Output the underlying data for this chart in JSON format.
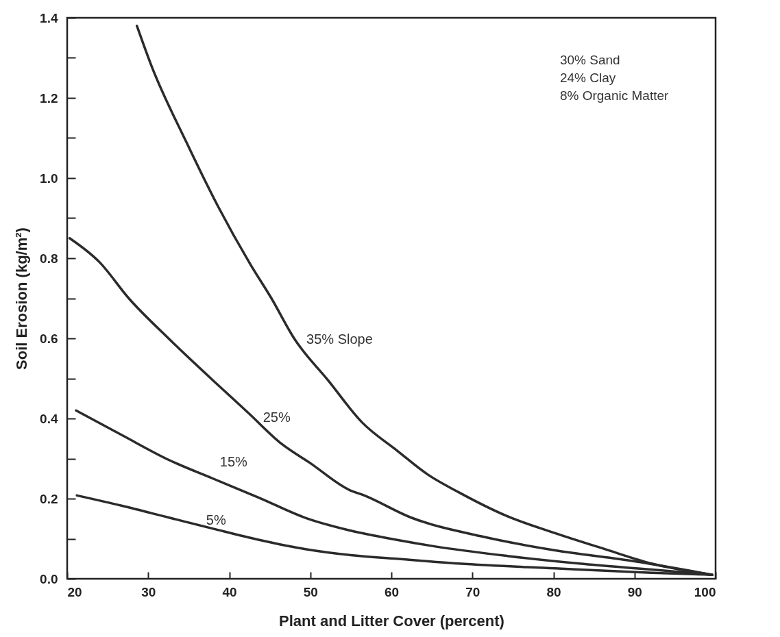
{
  "chart_data": {
    "type": "line",
    "xlabel": "Plant and Litter Cover (percent)",
    "ylabel": "Soil Erosion (kg/m²)",
    "xlim": [
      20,
      100
    ],
    "ylim": [
      0,
      1.4
    ],
    "xticks": [
      20,
      30,
      40,
      50,
      60,
      70,
      80,
      90,
      100
    ],
    "yticks": [
      {
        "value": 0,
        "label": "0.0"
      },
      {
        "value": 0.1,
        "label": null
      },
      {
        "value": 0.2,
        "label": "0.2"
      },
      {
        "value": 0.3,
        "label": null
      },
      {
        "value": 0.4,
        "label": "0.4"
      },
      {
        "value": 0.5,
        "label": null
      },
      {
        "value": 0.6,
        "label": "0.6"
      },
      {
        "value": 0.7,
        "label": null
      },
      {
        "value": 0.8,
        "label": "0.8"
      },
      {
        "value": 0.9,
        "label": null
      },
      {
        "value": 1.0,
        "label": "1.0"
      },
      {
        "value": 1.1,
        "label": null
      },
      {
        "value": 1.2,
        "label": "1.2"
      },
      {
        "value": 1.3,
        "label": null
      },
      {
        "value": 1.4,
        "label": "1.4"
      }
    ],
    "grid": false,
    "legend": false,
    "marker": "none",
    "line_style": "solid",
    "annotations": [
      "30% Sand",
      "24% Clay",
      "8% Organic Matter"
    ],
    "series": [
      {
        "name": "35% Slope",
        "color": "#2b2b2b",
        "x": [
          28.6,
          30.4,
          34.7,
          38.6,
          42.6,
          45.2,
          48,
          52.2,
          56.4,
          60.7,
          64.5,
          68.3,
          74.2,
          80.2,
          86.2,
          92.1,
          99.6
        ],
        "values": [
          1.38,
          1.28,
          1.09,
          0.93,
          0.785,
          0.7,
          0.6,
          0.495,
          0.39,
          0.32,
          0.26,
          0.216,
          0.157,
          0.114,
          0.075,
          0.038,
          0.01
        ]
      },
      {
        "name": "25%",
        "color": "#2b2b2b",
        "x": [
          20.3,
          24,
          27.6,
          32.5,
          38,
          42.3,
          46.5,
          49.9,
          55,
          56.4,
          62.4,
          71.3,
          80.2,
          89.2,
          99.6
        ],
        "values": [
          0.85,
          0.79,
          0.7,
          0.6,
          0.495,
          0.415,
          0.336,
          0.29,
          0.22,
          0.21,
          0.153,
          0.105,
          0.071,
          0.046,
          0.01
        ]
      },
      {
        "name": "15%",
        "color": "#2b2b2b",
        "x": [
          21.1,
          26.8,
          32.5,
          38,
          43.7,
          49.4,
          55,
          60.7,
          65.3,
          74.3,
          83.2,
          92.1,
          99.6
        ],
        "values": [
          0.42,
          0.358,
          0.297,
          0.25,
          0.202,
          0.152,
          0.12,
          0.097,
          0.081,
          0.057,
          0.038,
          0.023,
          0.01
        ]
      },
      {
        "name": "5%",
        "color": "#2b2b2b",
        "x": [
          21.2,
          26.8,
          32.5,
          38,
          43.7,
          49.4,
          55,
          60.7,
          68.3,
          80.2,
          92.1,
          99.6
        ],
        "values": [
          0.208,
          0.182,
          0.153,
          0.125,
          0.097,
          0.074,
          0.059,
          0.05,
          0.038,
          0.026,
          0.015,
          0.01
        ]
      }
    ]
  }
}
